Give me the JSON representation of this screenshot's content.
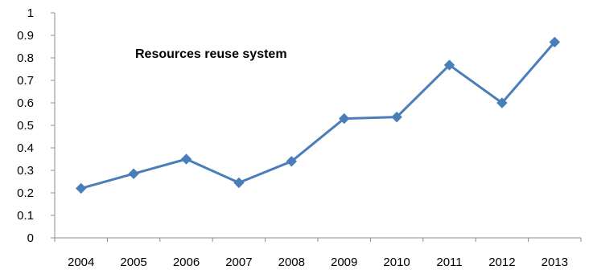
{
  "chart_data": {
    "type": "line",
    "title": "Resources reuse system",
    "xlabel": "",
    "ylabel": "",
    "categories": [
      "2004",
      "2005",
      "2006",
      "2007",
      "2008",
      "2009",
      "2010",
      "2011",
      "2012",
      "2013"
    ],
    "series": [
      {
        "values": [
          0.22,
          0.285,
          0.35,
          0.245,
          0.34,
          0.53,
          0.537,
          0.768,
          0.6,
          0.87
        ],
        "color": "#4a7ebb",
        "marker": "diamond"
      }
    ],
    "ylim": [
      0,
      1
    ],
    "yticks": [
      "0",
      "0.1",
      "0.2",
      "0.3",
      "0.4",
      "0.5",
      "0.6",
      "0.7",
      "0.8",
      "0.9",
      "1"
    ],
    "grid": false,
    "legend": "none"
  }
}
